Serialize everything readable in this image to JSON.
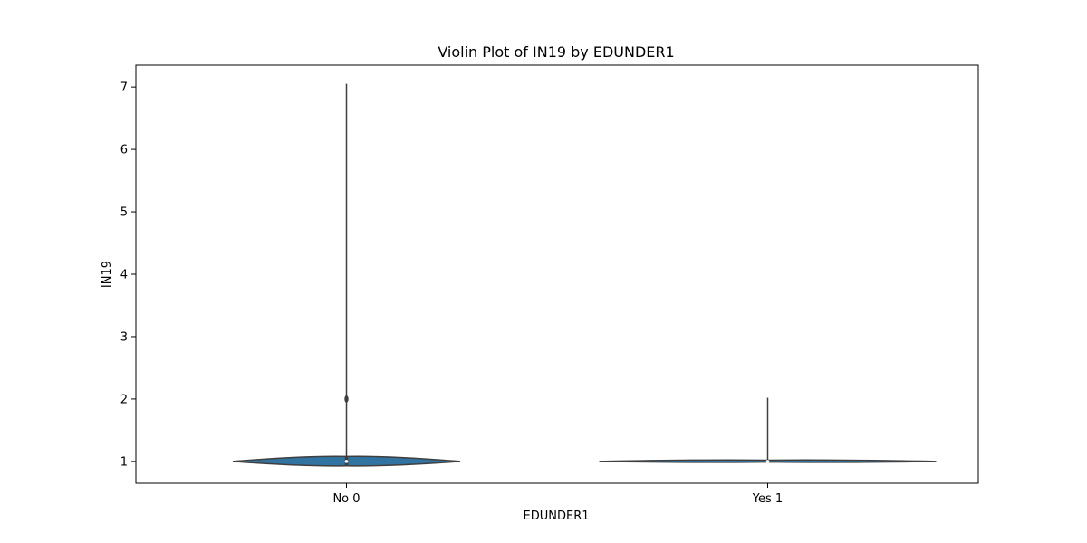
{
  "chart_data": {
    "type": "violin",
    "title": "Violin Plot of IN19 by EDUNDER1",
    "xlabel": "EDUNDER1",
    "ylabel": "IN19",
    "categories": [
      "No 0",
      "Yes 1"
    ],
    "ylim": [
      0.65,
      7.35
    ],
    "yticks": [
      1,
      2,
      3,
      4,
      5,
      6,
      7
    ],
    "violins": [
      {
        "category": "No 0",
        "min": 1,
        "max": 7.05,
        "median": 1,
        "q1": 1,
        "q3": 1,
        "outlier_marker": 2,
        "body_low": 0.93,
        "body_high": 1.08,
        "max_half_width_fraction": 0.27
      },
      {
        "category": "Yes 1",
        "min": 1,
        "max": 2.02,
        "median": 1,
        "q1": 1,
        "q3": 1,
        "body_low": 0.99,
        "body_high": 1.02,
        "max_half_width_fraction": 0.4
      }
    ],
    "colors": {
      "violin_fill": "#3274a1",
      "violin_stroke": "#3f3f3f",
      "whisker": "#3f3f3f"
    },
    "grid": false,
    "legend": "none"
  }
}
